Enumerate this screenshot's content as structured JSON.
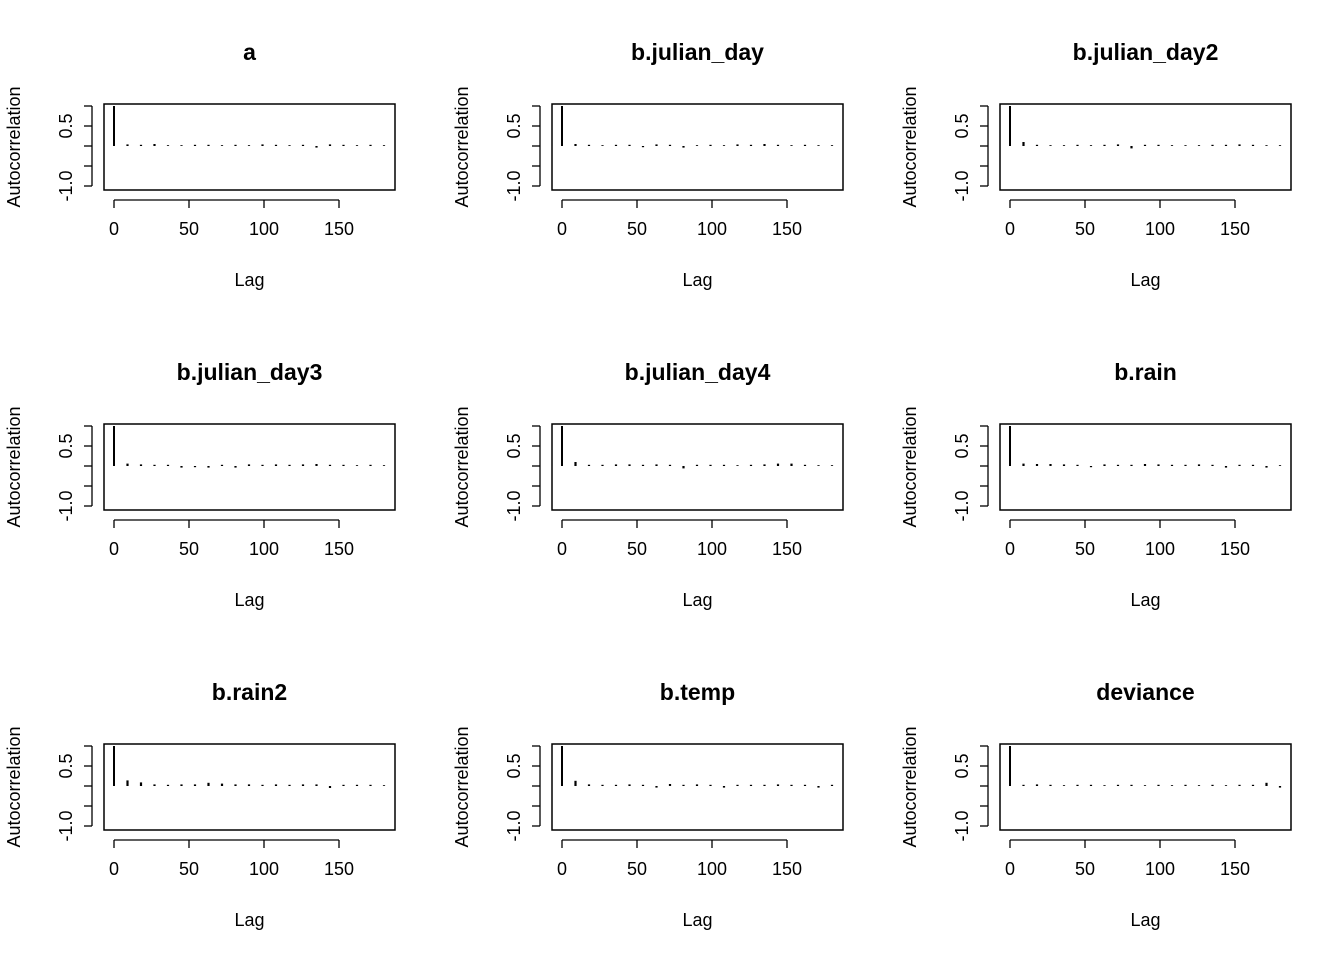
{
  "chart_data": [
    {
      "type": "bar",
      "title": "a",
      "xlabel": "Lag",
      "ylabel": "Autocorrelation",
      "xlim": [
        0,
        180
      ],
      "ylim": [
        -1,
        1
      ],
      "xticks": [
        0,
        50,
        100,
        150
      ],
      "xtick_labels": [
        "0",
        "50",
        "100",
        "150"
      ],
      "yticks": [
        -1,
        -0.5,
        0,
        0.5,
        1
      ],
      "ytick_labels": [
        "-1.0",
        "",
        "",
        "0.5",
        ""
      ],
      "x": [
        0,
        9,
        18,
        27,
        36,
        45,
        54,
        63,
        72,
        81,
        90,
        99,
        108,
        117,
        126,
        135,
        144,
        153,
        162,
        171,
        180
      ],
      "values": [
        1.0,
        0.04,
        0.03,
        0.05,
        0.02,
        0.02,
        0.03,
        0.03,
        0.02,
        0.03,
        0.02,
        0.04,
        0.03,
        0.02,
        0.03,
        -0.04,
        0.04,
        0.03,
        0.02,
        0.03,
        0.02
      ]
    },
    {
      "type": "bar",
      "title": "b.julian_day",
      "xlabel": "Lag",
      "ylabel": "Autocorrelation",
      "xlim": [
        0,
        180
      ],
      "ylim": [
        -1,
        1
      ],
      "xticks": [
        0,
        50,
        100,
        150
      ],
      "xtick_labels": [
        "0",
        "50",
        "100",
        "150"
      ],
      "yticks": [
        -1,
        -0.5,
        0,
        0.5,
        1
      ],
      "ytick_labels": [
        "-1.0",
        "",
        "",
        "0.5",
        ""
      ],
      "x": [
        0,
        9,
        18,
        27,
        36,
        45,
        54,
        63,
        72,
        81,
        90,
        99,
        108,
        117,
        126,
        135,
        144,
        153,
        162,
        171,
        180
      ],
      "values": [
        1.0,
        0.05,
        0.03,
        0.02,
        0.03,
        0.03,
        -0.03,
        0.04,
        0.03,
        -0.04,
        0.02,
        0.03,
        0.02,
        0.04,
        0.03,
        0.05,
        0.03,
        0.02,
        0.03,
        0.02,
        0.02
      ]
    },
    {
      "type": "bar",
      "title": "b.julian_day2",
      "xlabel": "Lag",
      "ylabel": "Autocorrelation",
      "xlim": [
        0,
        180
      ],
      "ylim": [
        -1,
        1
      ],
      "xticks": [
        0,
        50,
        100,
        150
      ],
      "xtick_labels": [
        "0",
        "50",
        "100",
        "150"
      ],
      "yticks": [
        -1,
        -0.5,
        0,
        0.5,
        1
      ],
      "ytick_labels": [
        "-1.0",
        "",
        "",
        "0.5",
        ""
      ],
      "x": [
        0,
        9,
        18,
        27,
        36,
        45,
        54,
        63,
        72,
        81,
        90,
        99,
        108,
        117,
        126,
        135,
        144,
        153,
        162,
        171,
        180
      ],
      "values": [
        1.0,
        0.1,
        0.03,
        0.02,
        0.02,
        0.03,
        0.02,
        0.03,
        0.04,
        -0.06,
        0.03,
        0.03,
        0.02,
        0.02,
        0.02,
        0.03,
        0.03,
        0.04,
        0.03,
        0.02,
        0.02
      ]
    },
    {
      "type": "bar",
      "title": "b.julian_day3",
      "xlabel": "Lag",
      "ylabel": "Autocorrelation",
      "xlim": [
        0,
        180
      ],
      "ylim": [
        -1,
        1
      ],
      "xticks": [
        0,
        50,
        100,
        150
      ],
      "xtick_labels": [
        "0",
        "50",
        "100",
        "150"
      ],
      "yticks": [
        -1,
        -0.5,
        0,
        0.5,
        1
      ],
      "ytick_labels": [
        "-1.0",
        "",
        "",
        "0.5",
        ""
      ],
      "x": [
        0,
        9,
        18,
        27,
        36,
        45,
        54,
        63,
        72,
        81,
        90,
        99,
        108,
        117,
        126,
        135,
        144,
        153,
        162,
        171,
        180
      ],
      "values": [
        1.0,
        0.06,
        0.04,
        0.03,
        0.03,
        -0.04,
        -0.03,
        -0.04,
        0.03,
        -0.04,
        0.04,
        0.03,
        0.04,
        0.03,
        0.04,
        0.05,
        0.03,
        0.03,
        0.02,
        0.03,
        0.02
      ]
    },
    {
      "type": "bar",
      "title": "b.julian_day4",
      "xlabel": "Lag",
      "ylabel": "Autocorrelation",
      "xlim": [
        0,
        180
      ],
      "ylim": [
        -1,
        1
      ],
      "xticks": [
        0,
        50,
        100,
        150
      ],
      "xtick_labels": [
        "0",
        "50",
        "100",
        "150"
      ],
      "yticks": [
        -1,
        -0.5,
        0,
        0.5,
        1
      ],
      "ytick_labels": [
        "-1.0",
        "",
        "",
        "0.5",
        ""
      ],
      "x": [
        0,
        9,
        18,
        27,
        36,
        45,
        54,
        63,
        72,
        81,
        90,
        99,
        108,
        117,
        126,
        135,
        144,
        153,
        162,
        171,
        180
      ],
      "values": [
        1.0,
        0.1,
        0.03,
        0.03,
        0.04,
        0.04,
        0.03,
        0.04,
        0.03,
        -0.06,
        0.03,
        0.03,
        0.03,
        0.02,
        0.03,
        0.04,
        0.06,
        0.06,
        0.03,
        0.02,
        0.02
      ]
    },
    {
      "type": "bar",
      "title": "b.rain",
      "xlabel": "Lag",
      "ylabel": "Autocorrelation",
      "xlim": [
        0,
        180
      ],
      "ylim": [
        -1,
        1
      ],
      "xticks": [
        0,
        50,
        100,
        150
      ],
      "xtick_labels": [
        "0",
        "50",
        "100",
        "150"
      ],
      "yticks": [
        -1,
        -0.5,
        0,
        0.5,
        1
      ],
      "ytick_labels": [
        "-1.0",
        "",
        "",
        "0.5",
        ""
      ],
      "x": [
        0,
        9,
        18,
        27,
        36,
        45,
        54,
        63,
        72,
        81,
        90,
        99,
        108,
        117,
        126,
        135,
        144,
        153,
        162,
        171,
        180
      ],
      "values": [
        1.0,
        0.06,
        0.05,
        0.05,
        0.04,
        0.03,
        -0.03,
        0.04,
        0.03,
        0.03,
        0.05,
        0.04,
        0.03,
        0.03,
        0.04,
        0.03,
        -0.04,
        0.03,
        0.03,
        -0.04,
        0.02
      ]
    },
    {
      "type": "bar",
      "title": "b.rain2",
      "xlabel": "Lag",
      "ylabel": "Autocorrelation",
      "xlim": [
        0,
        180
      ],
      "ylim": [
        -1,
        1
      ],
      "xticks": [
        0,
        50,
        100,
        150
      ],
      "xtick_labels": [
        "0",
        "50",
        "100",
        "150"
      ],
      "yticks": [
        -1,
        -0.5,
        0,
        0.5,
        1
      ],
      "ytick_labels": [
        "-1.0",
        "",
        "",
        "0.5",
        ""
      ],
      "x": [
        0,
        9,
        18,
        27,
        36,
        45,
        54,
        63,
        72,
        81,
        90,
        99,
        108,
        117,
        126,
        135,
        144,
        153,
        162,
        171,
        180
      ],
      "values": [
        1.0,
        0.14,
        0.09,
        0.04,
        0.03,
        0.04,
        0.04,
        0.08,
        0.06,
        0.04,
        0.04,
        0.03,
        0.04,
        0.03,
        0.04,
        0.04,
        -0.05,
        0.03,
        0.03,
        0.03,
        0.02
      ]
    },
    {
      "type": "bar",
      "title": "b.temp",
      "xlabel": "Lag",
      "ylabel": "Autocorrelation",
      "xlim": [
        0,
        180
      ],
      "ylim": [
        -1,
        1
      ],
      "xticks": [
        0,
        50,
        100,
        150
      ],
      "xtick_labels": [
        "0",
        "50",
        "100",
        "150"
      ],
      "yticks": [
        -1,
        -0.5,
        0,
        0.5,
        1
      ],
      "ytick_labels": [
        "-1.0",
        "",
        "",
        "0.5",
        ""
      ],
      "x": [
        0,
        9,
        18,
        27,
        36,
        45,
        54,
        63,
        72,
        81,
        90,
        99,
        108,
        117,
        126,
        135,
        144,
        153,
        162,
        171,
        180
      ],
      "values": [
        1.0,
        0.13,
        0.04,
        0.03,
        0.03,
        0.04,
        0.03,
        -0.04,
        0.05,
        0.03,
        0.04,
        0.03,
        -0.04,
        0.03,
        0.03,
        0.03,
        0.04,
        0.03,
        0.03,
        -0.04,
        0.03
      ]
    },
    {
      "type": "bar",
      "title": "deviance",
      "xlabel": "Lag",
      "ylabel": "Autocorrelation",
      "xlim": [
        0,
        180
      ],
      "ylim": [
        -1,
        1
      ],
      "xticks": [
        0,
        50,
        100,
        150
      ],
      "xtick_labels": [
        "0",
        "50",
        "100",
        "150"
      ],
      "yticks": [
        -1,
        -0.5,
        0,
        0.5,
        1
      ],
      "ytick_labels": [
        "-1.0",
        "",
        "",
        "0.5",
        ""
      ],
      "x": [
        0,
        9,
        18,
        27,
        36,
        45,
        54,
        63,
        72,
        81,
        90,
        99,
        108,
        117,
        126,
        135,
        144,
        153,
        162,
        171,
        180
      ],
      "values": [
        1.0,
        0.03,
        0.04,
        0.03,
        0.02,
        0.03,
        0.03,
        0.02,
        0.03,
        0.03,
        0.02,
        0.03,
        0.02,
        0.03,
        0.02,
        0.03,
        0.02,
        0.03,
        0.03,
        0.08,
        -0.04
      ]
    }
  ]
}
